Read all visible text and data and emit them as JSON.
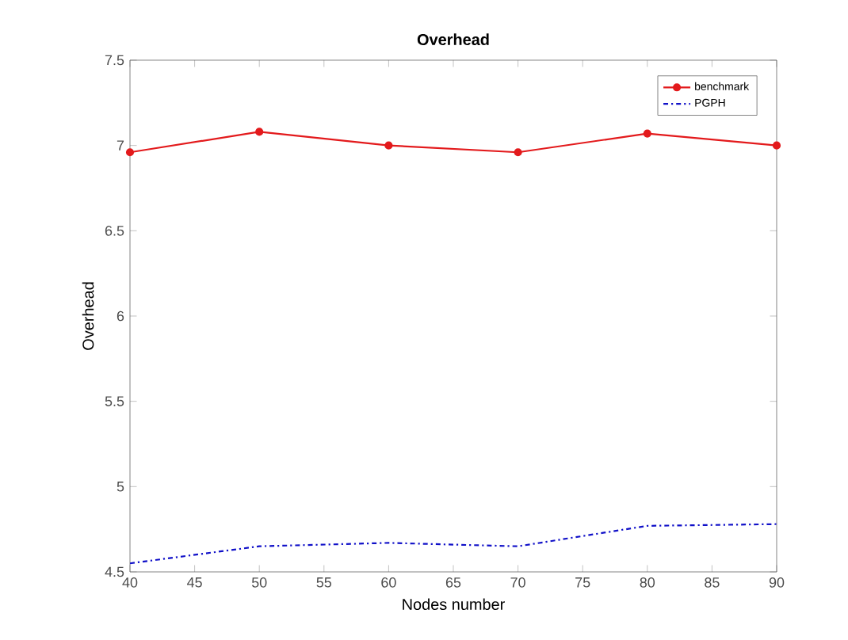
{
  "chart_data": {
    "type": "line",
    "title": "Overhead",
    "xlabel": "Nodes number",
    "ylabel": "Overhead",
    "x": [
      40,
      50,
      60,
      70,
      80,
      90
    ],
    "series": [
      {
        "name": "benchmark",
        "color": "#e31a1c",
        "marker": "circle",
        "line_style": "solid",
        "values": [
          6.96,
          7.08,
          7.0,
          6.96,
          7.07,
          7.0
        ]
      },
      {
        "name": "PGPH",
        "color": "#1010c8",
        "marker": "none",
        "line_style": "dashed",
        "values": [
          4.55,
          4.65,
          4.67,
          4.65,
          4.77,
          4.78
        ]
      }
    ],
    "xlim": [
      40,
      90
    ],
    "xticks": [
      40,
      45,
      50,
      55,
      60,
      65,
      70,
      75,
      80,
      85,
      90
    ],
    "ylim": [
      4.5,
      7.5
    ],
    "yticks": [
      4.5,
      5,
      5.5,
      6,
      6.5,
      7,
      7.5
    ],
    "grid": false,
    "legend": "top right"
  }
}
